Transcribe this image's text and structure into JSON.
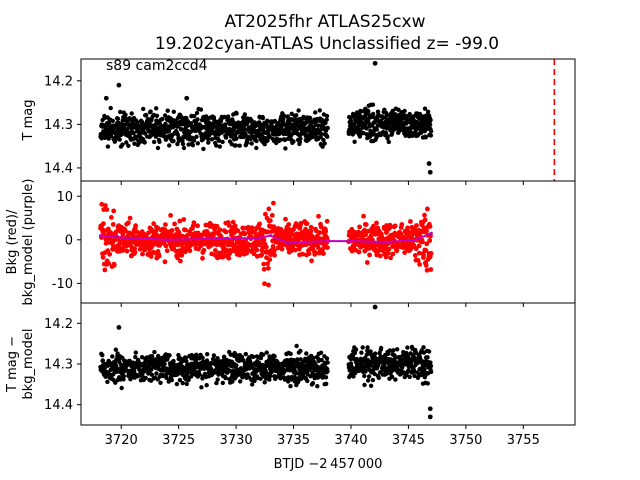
{
  "chart_data": [
    {
      "type": "scatter",
      "panel": "top",
      "title": "AT2025fhr  ATLAS25cxw",
      "subtitle": "19.202cyan-ATLAS Unclassified z= -99.0",
      "annotation": "s89 cam2ccd4",
      "ylabel": "T mag",
      "y_inverted": true,
      "xlim": [
        3716.5,
        3759.5
      ],
      "ylim": [
        14.43,
        14.15
      ],
      "yticks": [
        14.2,
        14.3,
        14.4
      ],
      "marker_color": "#000000",
      "segments": [
        {
          "x_start": 3718.2,
          "x_end": 3738.0,
          "y_center": 14.31,
          "spread": 0.04
        },
        {
          "x_start": 3739.8,
          "x_end": 3747.0,
          "y_center": 14.3,
          "spread": 0.04
        }
      ],
      "outliers": [
        {
          "x": 3718.7,
          "y": 14.24
        },
        {
          "x": 3719.8,
          "y": 14.21
        },
        {
          "x": 3725.7,
          "y": 14.24
        },
        {
          "x": 3742.1,
          "y": 14.16
        },
        {
          "x": 3746.8,
          "y": 14.39
        },
        {
          "x": 3746.9,
          "y": 14.41
        }
      ],
      "vline": {
        "x": 3757.7,
        "color": "#ff0000",
        "style": "dashed"
      }
    },
    {
      "type": "scatter",
      "panel": "middle",
      "ylabel": "Bkg (red)/\nbkg_model (purple)",
      "ylabel_lines": [
        "Bkg (red)/",
        "bkg_model (purple)"
      ],
      "xlim": [
        3716.5,
        3759.5
      ],
      "ylim": [
        -14.5,
        13.5
      ],
      "yticks": [
        -10,
        0,
        10
      ],
      "series": [
        {
          "name": "Bkg",
          "color": "#ff0000"
        },
        {
          "name": "bkg_model",
          "color": "#bf00bf"
        }
      ],
      "model_points": [
        {
          "x": 3718.2,
          "y": 1.0
        },
        {
          "x": 3720,
          "y": 0.5
        },
        {
          "x": 3724,
          "y": 0.0
        },
        {
          "x": 3728,
          "y": 0.2
        },
        {
          "x": 3732,
          "y": 0.4
        },
        {
          "x": 3733,
          "y": 1.0
        },
        {
          "x": 3734.5,
          "y": -0.8
        },
        {
          "x": 3736,
          "y": -0.5
        },
        {
          "x": 3738,
          "y": -0.3
        },
        {
          "x": 3740,
          "y": -0.3
        },
        {
          "x": 3743,
          "y": -0.5
        },
        {
          "x": 3745.5,
          "y": -0.1
        },
        {
          "x": 3747,
          "y": 1.5
        }
      ]
    },
    {
      "type": "scatter",
      "panel": "bottom",
      "ylabel": "T mag −\nbkg_model",
      "ylabel_lines": [
        "T mag −",
        "bkg_model"
      ],
      "xlabel": "BTJD −2 457 000",
      "xlim": [
        3716.5,
        3759.5
      ],
      "ylim": [
        14.45,
        14.15
      ],
      "yticks": [
        14.2,
        14.3,
        14.4
      ],
      "xticks": [
        3720,
        3725,
        3730,
        3735,
        3740,
        3745,
        3750,
        3755
      ],
      "marker_color": "#000000",
      "segments": [
        {
          "x_start": 3718.2,
          "x_end": 3738.0,
          "y_center": 14.31,
          "spread": 0.04
        },
        {
          "x_start": 3739.8,
          "x_end": 3747.0,
          "y_center": 14.3,
          "spread": 0.04
        }
      ],
      "outliers": [
        {
          "x": 3719.8,
          "y": 14.21
        },
        {
          "x": 3742.1,
          "y": 14.16
        },
        {
          "x": 3746.9,
          "y": 14.41
        },
        {
          "x": 3746.9,
          "y": 14.43
        }
      ]
    }
  ]
}
